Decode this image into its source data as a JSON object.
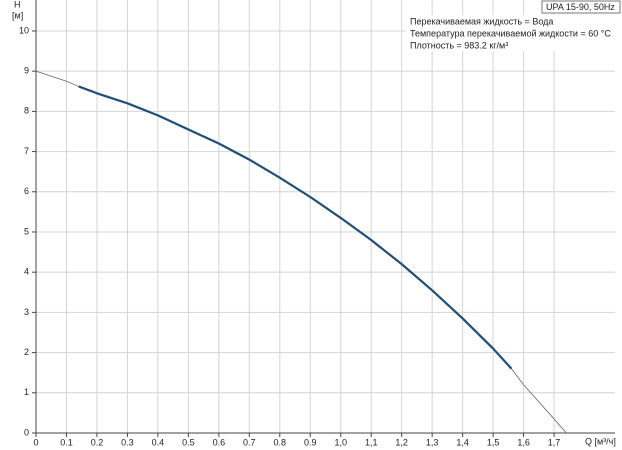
{
  "chart_data": {
    "type": "line",
    "title": "UPA 15-90, 50Hz",
    "annotations": [
      "Перекачиваемая жидкость = Вода",
      "Температура перекачиваемой жидкости = 60 °C",
      "Плотность = 983.2 кг/м³"
    ],
    "y_label": "H",
    "y_unit": "[м]",
    "x_label": "Q [м³/ч]",
    "x": [
      0,
      0.1,
      0.14,
      0.2,
      0.3,
      0.4,
      0.5,
      0.6,
      0.7,
      0.8,
      0.9,
      1.0,
      1.1,
      1.2,
      1.3,
      1.4,
      1.5,
      1.56,
      1.6,
      1.7,
      1.74
    ],
    "series": [
      {
        "color": "#666666",
        "line_width": 0.8,
        "values": [
          9.0,
          8.75,
          8.62,
          8.45,
          8.2,
          7.9,
          7.55,
          7.2,
          6.8,
          6.35,
          5.87,
          5.35,
          4.8,
          4.2,
          3.55,
          2.85,
          2.1,
          1.6,
          1.2,
          0.35,
          0
        ]
      },
      {
        "color": "#1f4e79",
        "line_width": 2.2,
        "values": [
          null,
          null,
          8.62,
          8.45,
          8.2,
          7.9,
          7.55,
          7.2,
          6.8,
          6.35,
          5.87,
          5.35,
          4.8,
          4.2,
          3.55,
          2.85,
          2.1,
          1.6,
          null,
          null,
          null
        ]
      }
    ],
    "xlim": [
      0,
      1.9
    ],
    "xticks": [
      0,
      0.1,
      0.2,
      0.3,
      0.4,
      0.5,
      0.6,
      0.7,
      0.8,
      0.9,
      {
        "value": 1.0,
        "label": "1,0"
      },
      {
        "value": 1.1,
        "label": "1,1"
      },
      {
        "value": 1.2,
        "label": "1,2"
      },
      {
        "value": 1.3,
        "label": "1,3"
      },
      {
        "value": 1.4,
        "label": "1,4"
      },
      {
        "value": 1.5,
        "label": "1,5"
      },
      {
        "value": 1.6,
        "label": "1,6"
      },
      {
        "value": 1.7,
        "label": "1,7"
      }
    ],
    "ylim": [
      0,
      10.77
    ],
    "yticks": [
      0,
      1,
      2,
      3,
      4,
      5,
      6,
      7,
      8,
      9,
      10
    ],
    "grid": true
  }
}
